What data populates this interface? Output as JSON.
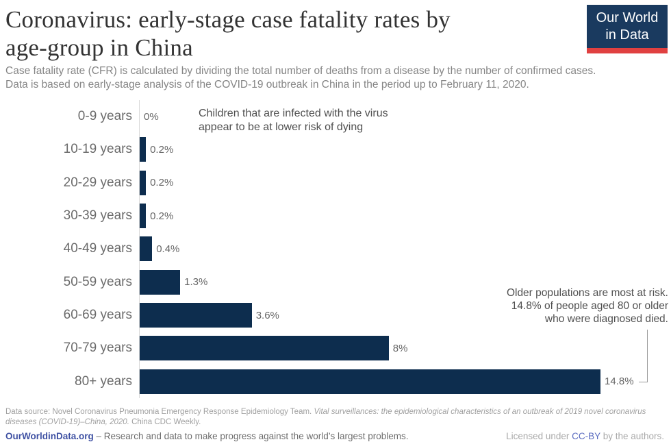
{
  "header": {
    "title_line1": "Coronavirus: early-stage case fatality rates by",
    "title_line2": "age-group in China",
    "logo": {
      "line1": "Our World",
      "line2": "in Data"
    }
  },
  "subtitle": {
    "line1": "Case fatality rate (CFR) is calculated by dividing the total number of deaths from a disease by the number of confirmed cases.",
    "line2": "Data is based on early-stage analysis of the COVID-19 outbreak in China in the period up to February 11, 2020."
  },
  "chart_data": {
    "type": "bar",
    "orientation": "horizontal",
    "title": "Coronavirus: early-stage case fatality rates by age-group in China",
    "categories": [
      "0-9 years",
      "10-19 years",
      "20-29 years",
      "30-39 years",
      "40-49 years",
      "50-59 years",
      "60-69 years",
      "70-79 years",
      "80+ years"
    ],
    "values": [
      0,
      0.2,
      0.2,
      0.2,
      0.4,
      1.3,
      3.6,
      8,
      14.8
    ],
    "value_labels": [
      "0%",
      "0.2%",
      "0.2%",
      "0.2%",
      "0.4%",
      "1.3%",
      "3.6%",
      "8%",
      "14.8%"
    ],
    "xlabel": "",
    "ylabel": "",
    "xlim": [
      0,
      14.8
    ],
    "grid": false,
    "legend": false,
    "bar_color": "#0d2d4e",
    "annotations": {
      "children": {
        "lines": [
          "Children that are infected with the virus",
          "appear to be at lower risk of dying"
        ]
      },
      "older": {
        "lines": [
          "Older populations are most at risk.",
          "14.8% of people aged 80 or older",
          "who were diagnosed died."
        ]
      }
    }
  },
  "footer": {
    "source_prefix": "Data source: Novel Coronavirus Pneumonia Emergency Response Epidemiology Team. ",
    "source_italic": "Vital surveillances: the epidemiological characteristics of an outbreak of 2019 novel coronavirus diseases (COVID-19)–China, 2020.",
    "source_suffix": " China CDC Weekly.",
    "site_link": "OurWorldinData.org",
    "site_tagline": " – Research and data to make progress against the world’s largest problems.",
    "license_prefix": "Licensed under ",
    "license_link": "CC-BY",
    "license_suffix": " by the authors."
  },
  "colors": {
    "bar_navy": "#0d2d4e",
    "logo_navy": "#1a3a5f",
    "logo_red": "#e04040",
    "link_blue": "#3f51a3",
    "license_link_blue": "#5b6cc0",
    "axis_gray": "#d9d9d9",
    "label_gray": "#6b6b6b"
  }
}
